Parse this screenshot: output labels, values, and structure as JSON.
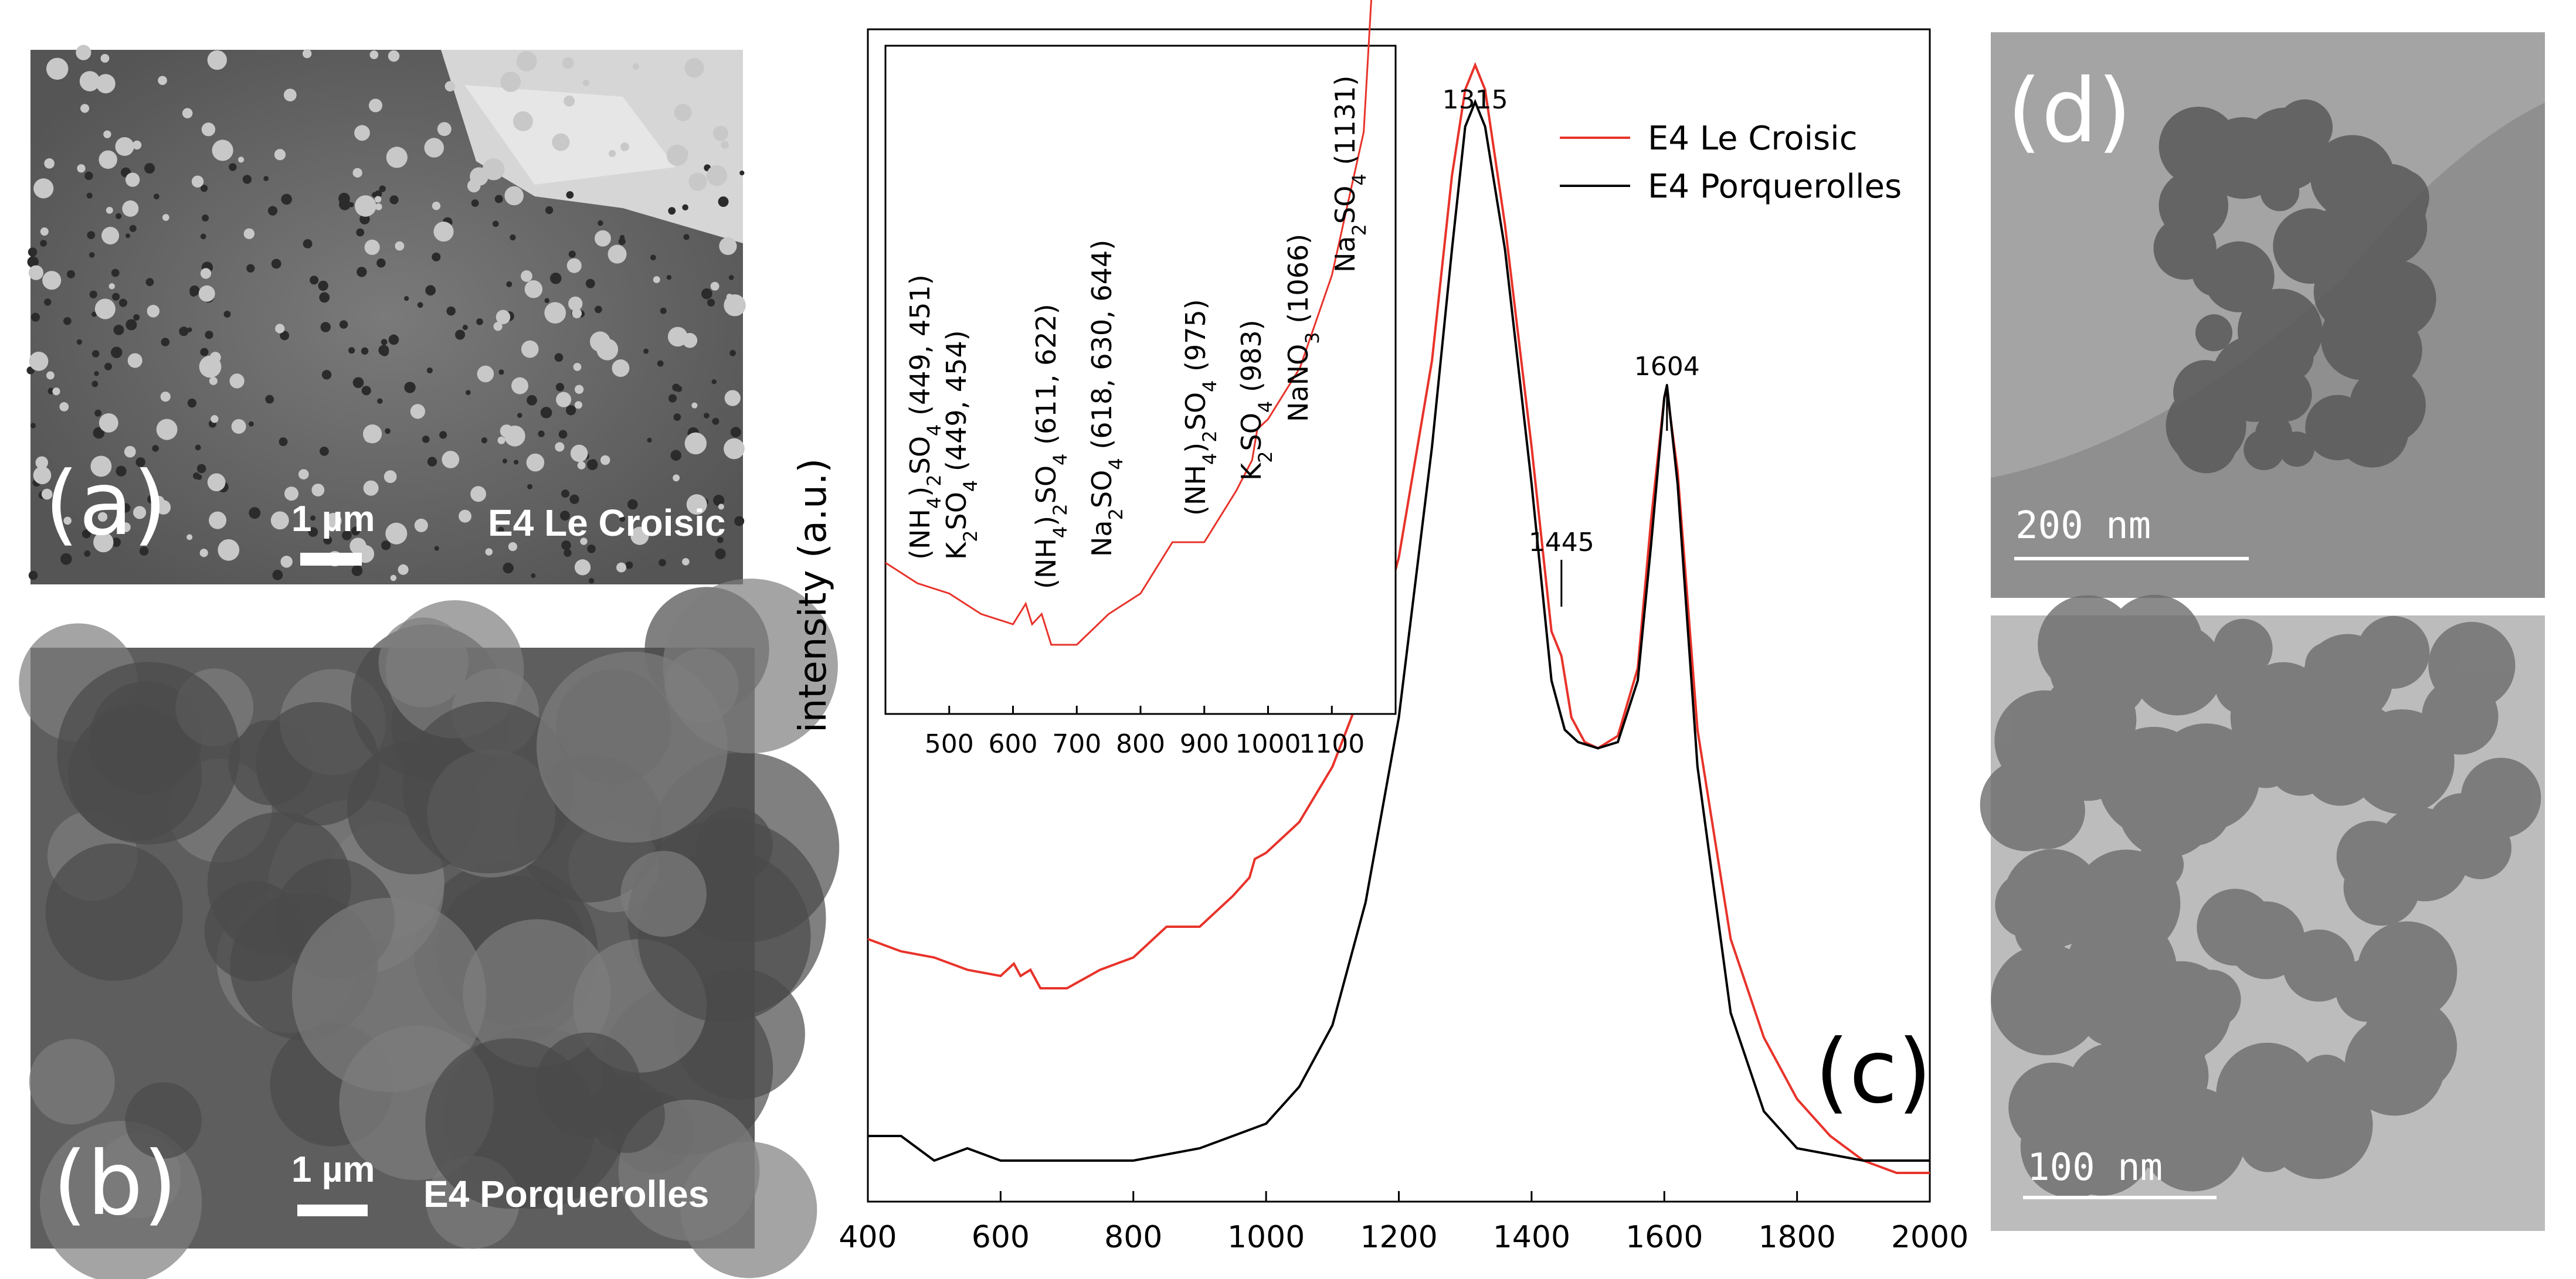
{
  "panels": {
    "a": {
      "label": "(a)",
      "scale": "1 µm",
      "caption": "E4 Le Croisic"
    },
    "b": {
      "label": "(b)",
      "scale": "1 µm",
      "caption": "E4 Porquerolles"
    },
    "c": {
      "label": "(c)"
    },
    "d": {
      "label": "(d)",
      "scale_top": "200 nm",
      "scale_bottom": "100 nm"
    }
  },
  "chart_data": {
    "type": "line",
    "xlim": [
      400,
      2000
    ],
    "x_ticks": [
      400,
      600,
      800,
      1000,
      1200,
      1400,
      1600,
      1800,
      2000
    ],
    "ylabel": "intensity (a.u.)",
    "legend": {
      "position": "top-right",
      "entries": [
        {
          "name": "E4 Le Croisic",
          "color": "#e8332a"
        },
        {
          "name": "E4 Porquerolles",
          "color": "#000000"
        }
      ]
    },
    "series": [
      {
        "name": "E4 Le Croisic",
        "color": "#e8332a",
        "x": [
          400,
          450,
          500,
          550,
          600,
          620,
          630,
          645,
          660,
          700,
          750,
          800,
          850,
          900,
          950,
          975,
          983,
          1000,
          1050,
          1100,
          1150,
          1200,
          1250,
          1280,
          1300,
          1315,
          1330,
          1360,
          1400,
          1430,
          1445,
          1460,
          1480,
          1500,
          1530,
          1560,
          1580,
          1600,
          1604,
          1620,
          1650,
          1700,
          1750,
          1800,
          1850,
          1900,
          1950,
          2000
        ],
        "y": [
          0.18,
          0.17,
          0.165,
          0.155,
          0.15,
          0.16,
          0.15,
          0.155,
          0.14,
          0.14,
          0.155,
          0.165,
          0.19,
          0.19,
          0.215,
          0.23,
          0.245,
          0.25,
          0.275,
          0.32,
          0.39,
          0.49,
          0.65,
          0.8,
          0.87,
          0.89,
          0.87,
          0.76,
          0.58,
          0.43,
          0.41,
          0.36,
          0.34,
          0.335,
          0.345,
          0.4,
          0.52,
          0.62,
          0.625,
          0.56,
          0.35,
          0.18,
          0.1,
          0.05,
          0.02,
          0.0,
          -0.01,
          -0.01
        ]
      },
      {
        "name": "E4 Porquerolles",
        "color": "#000000",
        "x": [
          400,
          450,
          500,
          550,
          600,
          650,
          700,
          750,
          800,
          850,
          900,
          950,
          1000,
          1050,
          1100,
          1150,
          1200,
          1250,
          1280,
          1300,
          1315,
          1330,
          1360,
          1400,
          1430,
          1450,
          1470,
          1500,
          1530,
          1560,
          1580,
          1600,
          1604,
          1620,
          1650,
          1700,
          1750,
          1800,
          1850,
          1900,
          1950,
          2000
        ],
        "y": [
          0.02,
          0.02,
          0.0,
          0.01,
          0.0,
          0.0,
          0.0,
          0.0,
          0.0,
          0.005,
          0.01,
          0.02,
          0.03,
          0.06,
          0.11,
          0.21,
          0.36,
          0.58,
          0.74,
          0.84,
          0.86,
          0.84,
          0.74,
          0.55,
          0.39,
          0.35,
          0.34,
          0.335,
          0.34,
          0.39,
          0.5,
          0.62,
          0.63,
          0.55,
          0.32,
          0.12,
          0.04,
          0.01,
          0.005,
          0.0,
          0.0,
          0.0
        ]
      }
    ],
    "peak_labels": [
      {
        "x": 1315,
        "label": "1315"
      },
      {
        "x": 1445,
        "label": "1445"
      },
      {
        "x": 1604,
        "label": "1604"
      }
    ],
    "inset": {
      "xlim": [
        400,
        1200
      ],
      "x_ticks": [
        500,
        600,
        700,
        800,
        900,
        1000,
        1100
      ],
      "annotations": [
        {
          "lines": [
            "(NH",
            "4",
            ")",
            "2",
            "SO",
            "4",
            " (449, 451)"
          ],
          "line2": [
            "K",
            "2",
            "SO",
            "4",
            " (449, 454)"
          ]
        },
        {
          "lines": [
            "(NH",
            "4",
            ")",
            "2",
            "SO",
            "4",
            " (611, 622)"
          ]
        },
        {
          "lines": [
            "Na",
            "2",
            "SO",
            "4",
            " (618, 630, 644)"
          ]
        },
        {
          "lines": [
            "(NH",
            "4",
            ")",
            "2",
            "SO",
            "4",
            " (975)"
          ]
        },
        {
          "lines": [
            "K",
            "2",
            "SO",
            "4",
            " (983)"
          ]
        },
        {
          "lines": [
            "NaNO",
            "3",
            " (1066)"
          ]
        },
        {
          "lines": [
            "Na",
            "2",
            "SO",
            "4",
            " (1131)"
          ]
        }
      ]
    }
  }
}
